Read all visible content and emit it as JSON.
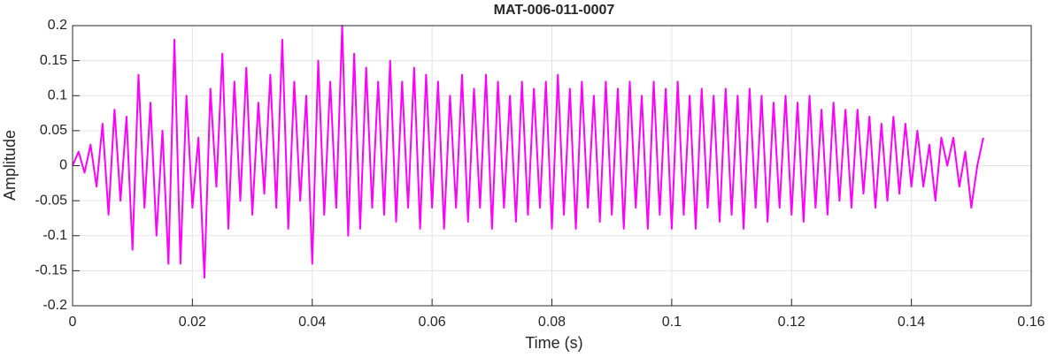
{
  "chart_data": {
    "type": "line",
    "title": "MAT-006-011-0007",
    "x_label": "Time (s)",
    "y_label": "Amplitude",
    "x": [
      0,
      0.001,
      0.002,
      0.003,
      0.004,
      0.005,
      0.006,
      0.007,
      0.008,
      0.009,
      0.01,
      0.011,
      0.012,
      0.013,
      0.014,
      0.015,
      0.016,
      0.017,
      0.018,
      0.019,
      0.02,
      0.021,
      0.022,
      0.023,
      0.024,
      0.025,
      0.026,
      0.027,
      0.028,
      0.029,
      0.03,
      0.031,
      0.032,
      0.033,
      0.034,
      0.035,
      0.036,
      0.037,
      0.038,
      0.039,
      0.04,
      0.041,
      0.042,
      0.043,
      0.044,
      0.045,
      0.046,
      0.047,
      0.048,
      0.049,
      0.05,
      0.051,
      0.052,
      0.053,
      0.054,
      0.055,
      0.056,
      0.057,
      0.058,
      0.059,
      0.06,
      0.061,
      0.062,
      0.063,
      0.064,
      0.065,
      0.066,
      0.067,
      0.068,
      0.069,
      0.07,
      0.071,
      0.072,
      0.073,
      0.074,
      0.075,
      0.076,
      0.077,
      0.078,
      0.079,
      0.08,
      0.081,
      0.082,
      0.083,
      0.084,
      0.085,
      0.086,
      0.087,
      0.088,
      0.089,
      0.09,
      0.091,
      0.092,
      0.093,
      0.094,
      0.095,
      0.096,
      0.097,
      0.098,
      0.099,
      0.1,
      0.101,
      0.102,
      0.103,
      0.104,
      0.105,
      0.106,
      0.107,
      0.108,
      0.109,
      0.11,
      0.111,
      0.112,
      0.113,
      0.114,
      0.115,
      0.116,
      0.117,
      0.118,
      0.119,
      0.12,
      0.121,
      0.122,
      0.123,
      0.124,
      0.125,
      0.126,
      0.127,
      0.128,
      0.129,
      0.13,
      0.131,
      0.132,
      0.133,
      0.134,
      0.135,
      0.136,
      0.137,
      0.138,
      0.139,
      0.14,
      0.141,
      0.142,
      0.143,
      0.144,
      0.145,
      0.146,
      0.147,
      0.148,
      0.149,
      0.15,
      0.151,
      0.152
    ],
    "values": [
      0,
      0.02,
      -0.01,
      0.03,
      -0.03,
      0.06,
      -0.07,
      0.08,
      -0.05,
      0.07,
      -0.12,
      0.13,
      -0.06,
      0.09,
      -0.1,
      0.05,
      -0.14,
      0.18,
      -0.14,
      0.1,
      -0.06,
      0.04,
      -0.16,
      0.11,
      -0.03,
      0.16,
      -0.09,
      0.12,
      -0.05,
      0.14,
      -0.07,
      0.09,
      -0.04,
      0.13,
      -0.06,
      0.18,
      -0.09,
      0.12,
      -0.05,
      0.1,
      -0.14,
      0.15,
      -0.07,
      0.12,
      -0.06,
      0.2,
      -0.1,
      0.16,
      -0.09,
      0.14,
      -0.06,
      0.12,
      -0.07,
      0.15,
      -0.08,
      0.12,
      -0.06,
      0.14,
      -0.09,
      0.13,
      -0.06,
      0.12,
      -0.09,
      0.1,
      -0.06,
      0.13,
      -0.08,
      0.11,
      -0.06,
      0.13,
      -0.09,
      0.12,
      -0.06,
      0.1,
      -0.08,
      0.12,
      -0.07,
      0.11,
      -0.06,
      0.12,
      -0.09,
      0.13,
      -0.07,
      0.11,
      -0.09,
      0.12,
      -0.06,
      0.1,
      -0.08,
      0.12,
      -0.07,
      0.11,
      -0.09,
      0.12,
      -0.06,
      0.1,
      -0.09,
      0.12,
      -0.07,
      0.11,
      -0.09,
      0.12,
      -0.07,
      0.1,
      -0.09,
      0.11,
      -0.06,
      0.1,
      -0.08,
      0.11,
      -0.07,
      0.1,
      -0.09,
      0.11,
      -0.06,
      0.1,
      -0.08,
      0.09,
      -0.06,
      0.1,
      -0.07,
      0.09,
      -0.08,
      0.1,
      -0.06,
      0.08,
      -0.07,
      0.09,
      -0.05,
      0.08,
      -0.06,
      0.08,
      -0.04,
      0.07,
      -0.06,
      0.06,
      -0.05,
      0.07,
      -0.04,
      0.06,
      -0.03,
      0.05,
      -0.03,
      0.03,
      -0.05,
      0.04,
      0,
      0.04,
      -0.03,
      0.02,
      -0.06,
      0,
      0.04
    ],
    "color": "#ff00ff",
    "xlim": [
      0,
      0.16
    ],
    "xticks": [
      0,
      0.02,
      0.04,
      0.06,
      0.08,
      0.1,
      0.12,
      0.14,
      0.16
    ],
    "ylim": [
      -0.2,
      0.2
    ],
    "yticks": [
      -0.2,
      -0.15,
      -0.1,
      -0.05,
      0,
      0.05,
      0.1,
      0.15,
      0.2
    ],
    "grid": true
  }
}
